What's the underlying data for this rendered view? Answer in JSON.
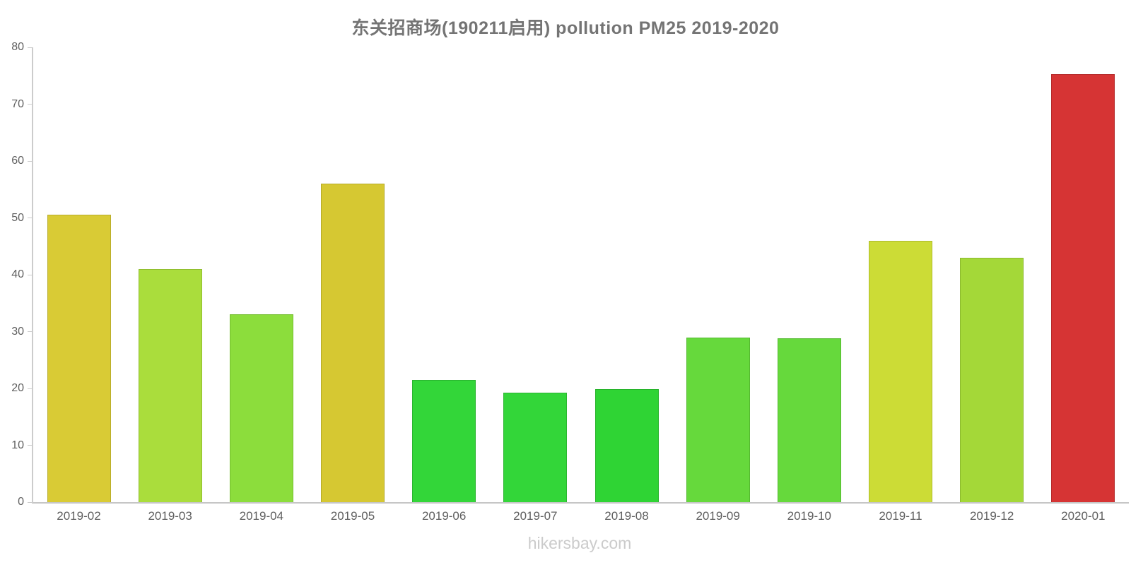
{
  "chart_data": {
    "type": "bar",
    "title": "东关招商场(190211启用) pollution PM25 2019-2020",
    "categories": [
      "2019-02",
      "2019-03",
      "2019-04",
      "2019-05",
      "2019-06",
      "2019-07",
      "2019-08",
      "2019-09",
      "2019-10",
      "2019-11",
      "2019-12",
      "2020-01"
    ],
    "values": [
      50.5,
      41,
      33,
      56,
      21.5,
      19.3,
      19.9,
      29,
      28.8,
      46,
      43,
      75.3
    ],
    "bar_colors": [
      "#d9cb35",
      "#aadd3c",
      "#8cdd3c",
      "#d6c832",
      "#33d639",
      "#33d639",
      "#2fd434",
      "#66d93c",
      "#66d93c",
      "#ccdc36",
      "#a4d838",
      "#d63434"
    ],
    "bar_border_colors": [
      "#b9ad2a",
      "#90bd2f",
      "#75bd2f",
      "#b6aa28",
      "#2ab52f",
      "#2ab52f",
      "#27b42b",
      "#55b930",
      "#55b930",
      "#aebc2b",
      "#8bb82d",
      "#b52a2a"
    ],
    "ylim": [
      0,
      80
    ],
    "yticks": [
      0,
      10,
      20,
      30,
      40,
      50,
      60,
      70,
      80
    ],
    "xlabel": "",
    "ylabel": "",
    "grid": false,
    "legend": "none"
  },
  "footer": {
    "text": "hikersbay.com"
  },
  "colors": {
    "background": "#ffffff",
    "title_text": "#747474",
    "axis_line": "#cccccc",
    "axis_label_text": "#5f5f5f",
    "watermark_text": "#cbcbcb"
  }
}
